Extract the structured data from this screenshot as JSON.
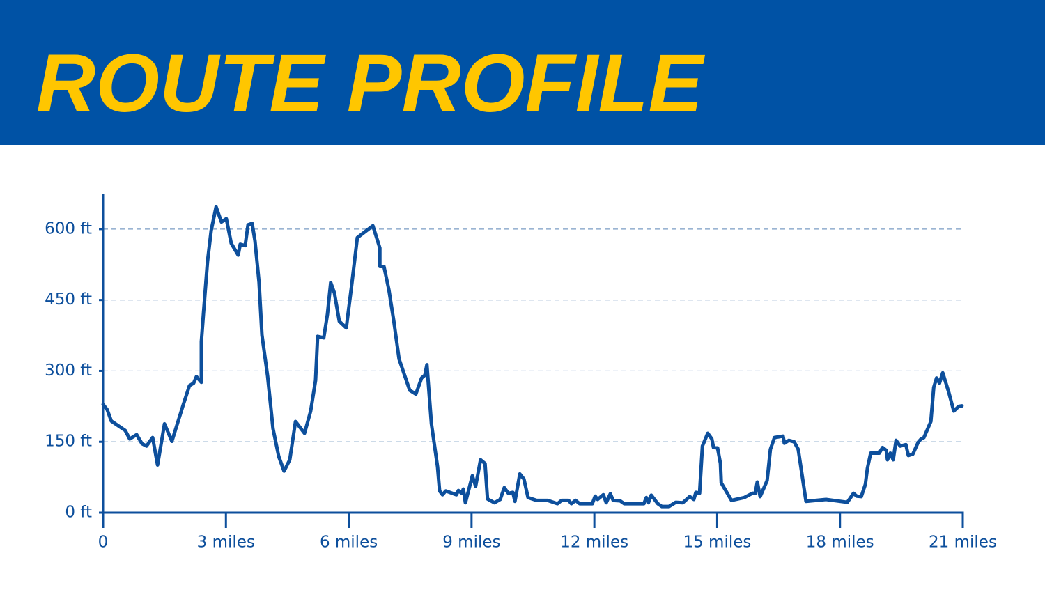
{
  "chart_data": {
    "type": "line",
    "title": "ROUTE PROFILE",
    "xlim": [
      0,
      21
    ],
    "ylim": [
      0,
      675
    ],
    "xticks": [
      0,
      {
        "value": 3,
        "label": "3 miles"
      },
      {
        "value": 6,
        "label": "6 miles"
      },
      {
        "value": 9,
        "label": "9 miles"
      },
      {
        "value": 12,
        "label": "12 miles"
      },
      {
        "value": 15,
        "label": "15 miles"
      },
      {
        "value": 18,
        "label": "18 miles"
      },
      {
        "value": 21,
        "label": "21 miles"
      }
    ],
    "yticks": [
      {
        "value": 0,
        "label": "0 ft"
      },
      {
        "value": 150,
        "label": "150 ft"
      },
      {
        "value": 300,
        "label": "300 ft"
      },
      {
        "value": 450,
        "label": "450 ft"
      },
      {
        "value": 600,
        "label": "600 ft"
      }
    ],
    "grid": true,
    "series": [
      {
        "color": "#0d4f9c",
        "x": [
          0,
          0.1,
          0.2,
          0.54,
          0.65,
          0.82,
          0.95,
          1.06,
          1.21,
          1.33,
          1.5,
          1.68,
          1.96,
          2.11,
          2.21,
          2.28,
          2.4,
          2.4,
          2.45,
          2.55,
          2.64,
          2.76,
          2.89,
          3.01,
          3.13,
          3.3,
          3.35,
          3.47,
          3.54,
          3.64,
          3.71,
          3.81,
          3.88,
          4.02,
          4.15,
          4.29,
          4.42,
          4.56,
          4.7,
          4.92,
          5.07,
          5.19,
          5.24,
          5.39,
          5.48,
          5.56,
          5.65,
          5.77,
          5.94,
          6.07,
          6.21,
          6.59,
          6.76,
          6.76,
          6.86,
          6.98,
          7.1,
          7.23,
          7.49,
          7.64,
          7.78,
          7.86,
          7.91,
          8.02,
          8.17,
          8.22,
          8.29,
          8.37,
          8.63,
          8.68,
          8.76,
          8.8,
          8.85,
          9.02,
          9.1,
          9.22,
          9.33,
          9.39,
          9.56,
          9.7,
          9.8,
          9.9,
          10.01,
          10.06,
          10.18,
          10.28,
          10.38,
          10.59,
          10.86,
          11.1,
          11.2,
          11.37,
          11.44,
          11.54,
          11.64,
          11.95,
          12.02,
          12.08,
          12.22,
          12.29,
          12.39,
          12.46,
          12.63,
          12.73,
          13.21,
          13.27,
          13.32,
          13.39,
          13.55,
          13.65,
          13.82,
          13.99,
          14.16,
          14.33,
          14.43,
          14.48,
          14.57,
          14.64,
          14.77,
          14.87,
          14.91,
          15.01,
          15.08,
          15.1,
          15.35,
          15.66,
          15.86,
          15.93,
          15.98,
          16.05,
          16.22,
          16.3,
          16.4,
          16.61,
          16.64,
          16.75,
          16.88,
          16.98,
          17.07,
          17.17,
          17.66,
          18.18,
          18.33,
          18.41,
          18.52,
          18.62,
          18.67,
          18.75,
          18.96,
          19.04,
          19.13,
          19.16,
          19.23,
          19.3,
          19.37,
          19.47,
          19.61,
          19.67,
          19.78,
          19.91,
          19.98,
          20.05,
          20.22,
          20.29,
          20.36,
          20.43,
          20.51,
          20.66,
          20.78,
          20.9,
          20.98
        ],
        "values": [
          229,
          218,
          194,
          174,
          156,
          165,
          146,
          141,
          159,
          101,
          188,
          151,
          229,
          269,
          274,
          288,
          276,
          362,
          420,
          531,
          597,
          647,
          615,
          622,
          570,
          545,
          568,
          565,
          609,
          612,
          575,
          487,
          376,
          288,
          178,
          119,
          88,
          112,
          193,
          168,
          215,
          280,
          373,
          370,
          420,
          487,
          465,
          405,
          391,
          480,
          582,
          607,
          560,
          521,
          521,
          472,
          406,
          325,
          259,
          251,
          285,
          291,
          313,
          188,
          97,
          46,
          38,
          46,
          38,
          47,
          41,
          50,
          21,
          78,
          56,
          112,
          104,
          29,
          21,
          28,
          53,
          41,
          43,
          24,
          82,
          71,
          32,
          26,
          26,
          19,
          26,
          26,
          19,
          26,
          19,
          19,
          35,
          28,
          38,
          21,
          40,
          26,
          25,
          19,
          19,
          32,
          21,
          37,
          19,
          13,
          13,
          22,
          21,
          34,
          28,
          43,
          41,
          141,
          168,
          156,
          138,
          137,
          104,
          63,
          26,
          32,
          41,
          41,
          65,
          34,
          68,
          134,
          159,
          162,
          147,
          153,
          150,
          134,
          82,
          24,
          28,
          22,
          41,
          35,
          34,
          60,
          94,
          126,
          126,
          138,
          132,
          112,
          126,
          112,
          153,
          141,
          144,
          121,
          124,
          149,
          156,
          159,
          193,
          265,
          285,
          274,
          296,
          254,
          215,
          225,
          226
        ]
      }
    ]
  }
}
